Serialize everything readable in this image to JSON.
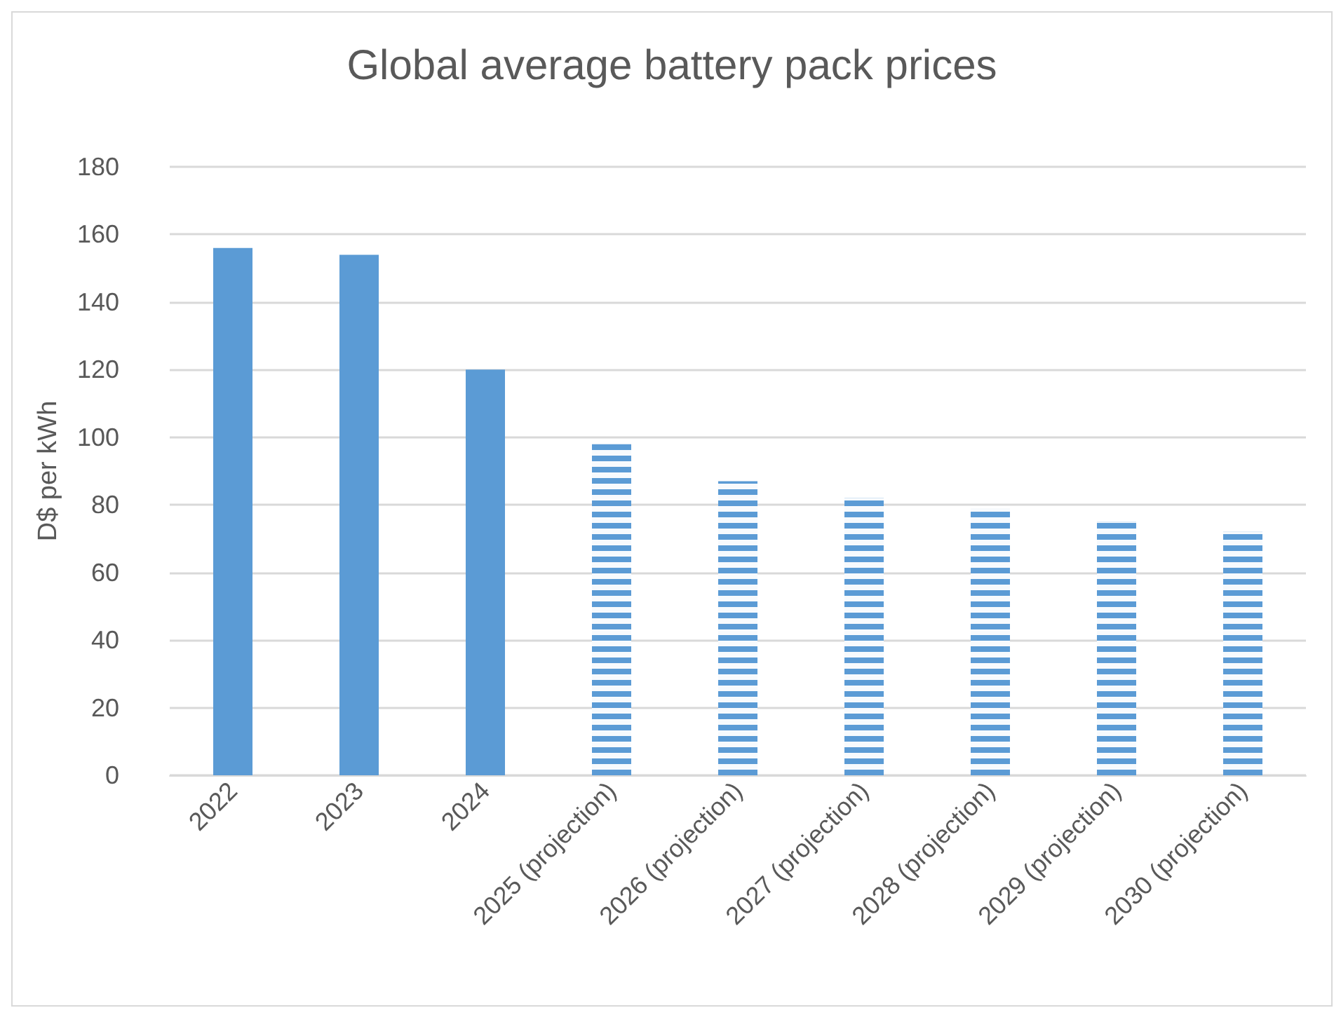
{
  "chart_data": {
    "type": "bar",
    "title": "Global average battery pack prices",
    "ylabel": "D$ per kWh",
    "categories": [
      "2022",
      "2023",
      "2024",
      "2025 (projection)",
      "2026 (projection)",
      "2027 (projection)",
      "2028 (projection)",
      "2029 (projection)",
      "2030 (projection)"
    ],
    "series": [
      {
        "color": "#5b9bd5",
        "values": [
          156,
          154,
          120,
          null,
          null,
          null,
          null,
          null,
          null
        ]
      },
      {
        "color": "#5b9bd5",
        "values": [
          null,
          null,
          null,
          98,
          87,
          82,
          79,
          75,
          72
        ]
      }
    ],
    "stacked": true,
    "ylim": [
      0,
      180
    ],
    "yticks": [
      0,
      20,
      40,
      60,
      80,
      100,
      120,
      140,
      160,
      180
    ],
    "grid": "y"
  }
}
